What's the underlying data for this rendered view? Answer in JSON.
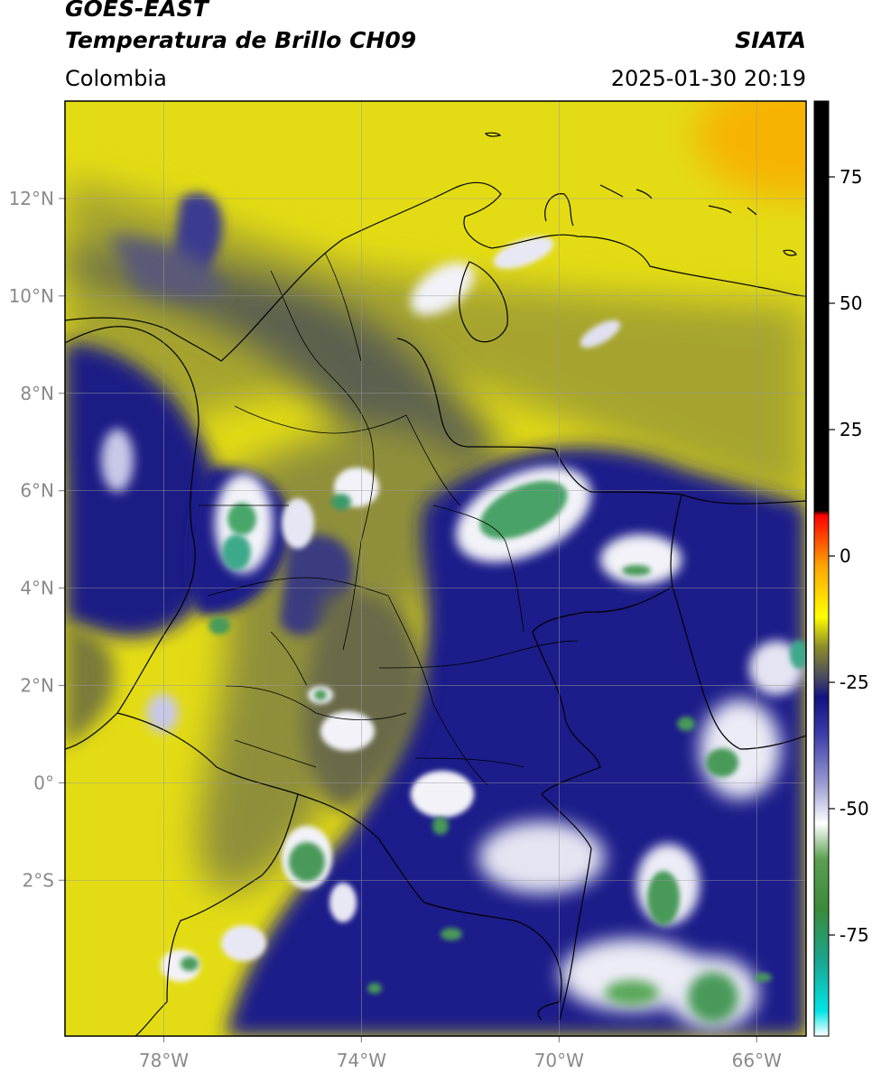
{
  "header": {
    "satellite": "GOES-EAST",
    "product": "Temperatura de Brillo CH09",
    "region": "Colombia",
    "brand": "SIATA",
    "timestamp": "2025-01-30 20:19"
  },
  "map": {
    "lon_range": [
      -80,
      -65
    ],
    "lat_range": [
      -5.2,
      14
    ],
    "lon_ticks": [
      {
        "value": -78,
        "label": "78°W"
      },
      {
        "value": -74,
        "label": "74°W"
      },
      {
        "value": -70,
        "label": "70°W"
      },
      {
        "value": -66,
        "label": "66°W"
      }
    ],
    "lat_ticks": [
      {
        "value": 12,
        "label": "12°N"
      },
      {
        "value": 10,
        "label": "10°N"
      },
      {
        "value": 8,
        "label": "8°N"
      },
      {
        "value": 6,
        "label": "6°N"
      },
      {
        "value": 4,
        "label": "4°N"
      },
      {
        "value": 2,
        "label": "2°N"
      },
      {
        "value": 0,
        "label": "0°"
      },
      {
        "value": -2,
        "label": "2°S"
      }
    ],
    "grid": true
  },
  "colorbar": {
    "range": [
      -95,
      90
    ],
    "ticks": [
      {
        "value": 75,
        "label": "75"
      },
      {
        "value": 50,
        "label": "50"
      },
      {
        "value": 25,
        "label": "25"
      },
      {
        "value": 0,
        "label": "0"
      },
      {
        "value": -25,
        "label": "-25"
      },
      {
        "value": -50,
        "label": "-50"
      },
      {
        "value": -75,
        "label": "-75"
      }
    ],
    "stops": [
      {
        "value": -95,
        "color": "#ffffff"
      },
      {
        "value": -90,
        "color": "#00e5e5"
      },
      {
        "value": -80,
        "color": "#1aa58f"
      },
      {
        "value": -70,
        "color": "#3a8a3a"
      },
      {
        "value": -60,
        "color": "#5aa050"
      },
      {
        "value": -53,
        "color": "#ffffff"
      },
      {
        "value": -45,
        "color": "#9a9ad2"
      },
      {
        "value": -35,
        "color": "#3a3aa8"
      },
      {
        "value": -28,
        "color": "#121282"
      },
      {
        "value": -24,
        "color": "#4a4a60"
      },
      {
        "value": -18,
        "color": "#8c8c2a"
      },
      {
        "value": -12,
        "color": "#ffff00"
      },
      {
        "value": -2,
        "color": "#ffa500"
      },
      {
        "value": 8,
        "color": "#ff0000"
      },
      {
        "value": 9,
        "color": "#000000"
      },
      {
        "value": 90,
        "color": "#000000"
      }
    ]
  },
  "palette": {
    "yellow": "#f1ea10",
    "olive": "#a6a42e",
    "dark_grey": "#545a54",
    "navy": "#1a1a85",
    "white": "#f2f2f8",
    "green": "#48a268",
    "orange": "#f6b400"
  }
}
